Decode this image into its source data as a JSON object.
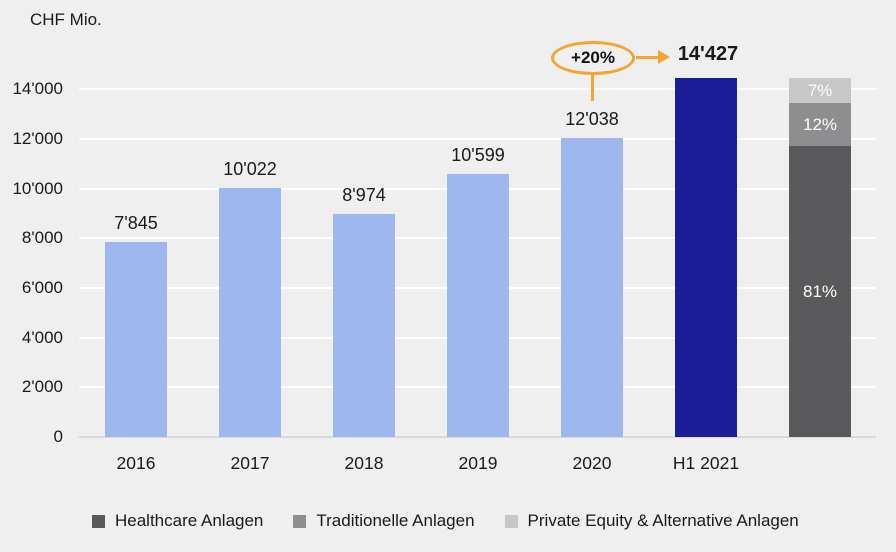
{
  "header": {
    "unit_label": "CHF Mio."
  },
  "colors": {
    "background": "#efefef",
    "gridline": "#fdfdfd",
    "axis_line": "#d9d9d9",
    "text": "#1a1a1a",
    "bar_primary": "#9eb8ef",
    "bar_highlight": "#1b1e96",
    "annotation_orange": "#f2a434",
    "segment_dark_gray": "#59595b",
    "segment_medium_gray": "#8e8e90",
    "segment_light_gray": "#c7c7c8"
  },
  "chart_data": {
    "type": "bar",
    "title": "",
    "xlabel": "",
    "ylabel": "CHF Mio.",
    "ylim": [
      0,
      14600
    ],
    "ytick_step": 2000,
    "ytick_labels": [
      "0",
      "2'000",
      "4'000",
      "6'000",
      "8'000",
      "10'000",
      "12'000",
      "14'000"
    ],
    "grid": true,
    "legend_position": "bottom",
    "categories": [
      "2016",
      "2017",
      "2018",
      "2019",
      "2020",
      "H1 2021"
    ],
    "values": [
      7845,
      10022,
      8974,
      10599,
      12038,
      14427
    ],
    "value_labels": [
      "7'845",
      "10'022",
      "8'974",
      "10'599",
      "12'038",
      "14'427"
    ],
    "highlight_category": "H1 2021",
    "annotation": {
      "text": "+20%",
      "from_category": "2020",
      "to_value_label": "14'427"
    },
    "allocation_bar": {
      "total_value": 14427,
      "segments": [
        {
          "name": "Healthcare Anlagen",
          "pct": 81,
          "label": "81%",
          "color": "#59595b"
        },
        {
          "name": "Traditionelle Anlagen",
          "pct": 12,
          "label": "12%",
          "color": "#8e8e90"
        },
        {
          "name": "Private Equity & Alternative Anlagen",
          "pct": 7,
          "label": "7%",
          "color": "#c7c7c8"
        }
      ]
    },
    "legend": {
      "entries": [
        {
          "label": "Healthcare Anlagen",
          "color": "#59595b"
        },
        {
          "label": "Traditionelle Anlagen",
          "color": "#8e8e90"
        },
        {
          "label": "Private Equity & Alternative Anlagen",
          "color": "#c7c7c8"
        }
      ]
    }
  }
}
